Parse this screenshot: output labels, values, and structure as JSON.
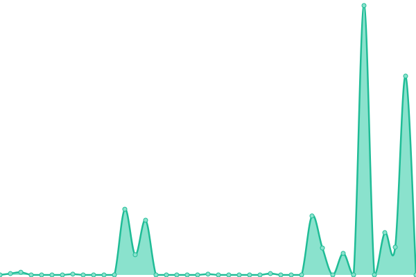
{
  "chart_data": {
    "type": "area",
    "values": [
      0,
      0.5,
      1,
      0,
      0,
      0,
      0,
      0.3,
      0,
      0,
      0,
      0,
      24.4,
      7.5,
      20.3,
      0,
      0,
      0,
      0,
      0,
      0.3,
      0,
      0,
      0,
      0,
      0,
      0.5,
      0,
      0,
      0,
      21.9,
      10,
      0,
      8,
      0,
      100,
      0,
      15.7,
      10.3,
      73.8,
      0
    ],
    "ylim": [
      0,
      100
    ],
    "color": "#1fbc96",
    "fill": "#8ae2cd",
    "smooth": true,
    "markers": true
  }
}
